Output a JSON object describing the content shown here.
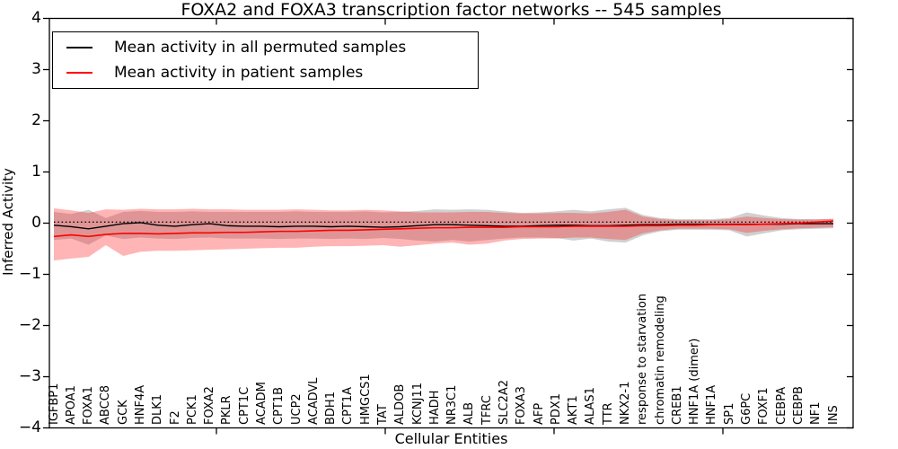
{
  "chart_data": {
    "type": "line",
    "title": "FOXA2 and FOXA3 transcription factor networks -- 545 samples",
    "xlabel": "Cellular Entities",
    "ylabel": "Inferred Activity",
    "ylim": [
      -4,
      4
    ],
    "yticks": [
      4,
      3,
      2,
      1,
      0,
      -1,
      -2,
      -3,
      -4
    ],
    "grid": false,
    "legend_position": "upper left",
    "categories": [
      "IGFBP1",
      "APOA1",
      "FOXA1",
      "ABCC8",
      "GCK",
      "HNF4A",
      "DLK1",
      "F2",
      "PCK1",
      "FOXA2",
      "PKLR",
      "CPT1C",
      "ACADM",
      "CPT1B",
      "UCP2",
      "ACADVL",
      "BDH1",
      "CPT1A",
      "HMGCS1",
      "TAT",
      "ALDOB",
      "KCNJ11",
      "HADH",
      "NR3C1",
      "ALB",
      "TFRC",
      "SLC2A2",
      "FOXA3",
      "AFP",
      "PDX1",
      "AKT1",
      "ALAS1",
      "TTR",
      "NKX2-1",
      "response to starvation",
      "chromatin remodeling",
      "CREB1",
      "HNF1A (dimer)",
      "HNF1A",
      "SP1",
      "G6PC",
      "FOXF1",
      "CEBPA",
      "CEBPB",
      "NF1",
      "INS"
    ],
    "series": [
      {
        "name": "Mean activity in all permuted samples",
        "color": "#000000",
        "style": "solid",
        "values": [
          -0.04,
          -0.07,
          -0.11,
          -0.06,
          -0.01,
          0.01,
          -0.04,
          -0.06,
          -0.03,
          -0.01,
          -0.05,
          -0.06,
          -0.06,
          -0.07,
          -0.06,
          -0.06,
          -0.07,
          -0.06,
          -0.07,
          -0.08,
          -0.07,
          -0.05,
          -0.03,
          -0.03,
          -0.04,
          -0.05,
          -0.06,
          -0.06,
          -0.05,
          -0.04,
          -0.04,
          -0.05,
          -0.05,
          -0.04,
          -0.03,
          -0.03,
          -0.02,
          -0.02,
          -0.02,
          -0.02,
          -0.02,
          -0.02,
          -0.02,
          -0.01,
          -0.01,
          -0.01
        ]
      },
      {
        "name": "Mean activity in patient samples",
        "color": "#ff0000",
        "style": "solid",
        "values": [
          -0.26,
          -0.23,
          -0.26,
          -0.22,
          -0.2,
          -0.2,
          -0.21,
          -0.2,
          -0.19,
          -0.19,
          -0.18,
          -0.18,
          -0.17,
          -0.16,
          -0.16,
          -0.15,
          -0.14,
          -0.14,
          -0.13,
          -0.12,
          -0.11,
          -0.1,
          -0.09,
          -0.09,
          -0.08,
          -0.08,
          -0.08,
          -0.07,
          -0.07,
          -0.07,
          -0.06,
          -0.06,
          -0.06,
          -0.06,
          -0.05,
          -0.05,
          -0.04,
          -0.04,
          -0.03,
          -0.03,
          -0.03,
          -0.02,
          -0.01,
          0.0,
          0.02,
          0.04
        ]
      },
      {
        "name": "permuted median reference",
        "color": "#000000",
        "style": "dotted",
        "constant": 0.02
      }
    ],
    "bands": [
      {
        "name": "permuted samples spread",
        "color": "rgba(120,120,120,0.35)",
        "upper": [
          0.22,
          0.18,
          0.26,
          0.1,
          0.22,
          0.24,
          0.22,
          0.22,
          0.23,
          0.22,
          0.22,
          0.22,
          0.22,
          0.22,
          0.23,
          0.22,
          0.22,
          0.22,
          0.23,
          0.21,
          0.22,
          0.24,
          0.27,
          0.26,
          0.27,
          0.26,
          0.23,
          0.2,
          0.21,
          0.23,
          0.26,
          0.23,
          0.27,
          0.3,
          0.16,
          0.1,
          0.08,
          0.08,
          0.08,
          0.1,
          0.21,
          0.15,
          0.1,
          0.08,
          0.08,
          0.08
        ],
        "lower": [
          -0.33,
          -0.3,
          -0.42,
          -0.24,
          -0.31,
          -0.28,
          -0.3,
          -0.31,
          -0.29,
          -0.28,
          -0.3,
          -0.3,
          -0.3,
          -0.31,
          -0.3,
          -0.3,
          -0.31,
          -0.3,
          -0.31,
          -0.29,
          -0.31,
          -0.34,
          -0.36,
          -0.33,
          -0.36,
          -0.33,
          -0.3,
          -0.28,
          -0.28,
          -0.29,
          -0.34,
          -0.3,
          -0.36,
          -0.38,
          -0.24,
          -0.16,
          -0.13,
          -0.13,
          -0.13,
          -0.14,
          -0.26,
          -0.2,
          -0.14,
          -0.12,
          -0.11,
          -0.1
        ]
      },
      {
        "name": "patient samples spread",
        "color": "rgba(255,25,25,0.32)",
        "upper": [
          0.29,
          0.25,
          0.2,
          0.27,
          0.26,
          0.28,
          0.27,
          0.27,
          0.28,
          0.27,
          0.27,
          0.26,
          0.26,
          0.26,
          0.27,
          0.26,
          0.25,
          0.25,
          0.26,
          0.25,
          0.23,
          0.21,
          0.21,
          0.21,
          0.22,
          0.22,
          0.2,
          0.19,
          0.19,
          0.2,
          0.2,
          0.19,
          0.22,
          0.26,
          0.13,
          0.08,
          0.06,
          0.06,
          0.06,
          0.08,
          0.13,
          0.1,
          0.08,
          0.07,
          0.07,
          0.09
        ],
        "lower": [
          -0.73,
          -0.69,
          -0.66,
          -0.43,
          -0.64,
          -0.56,
          -0.54,
          -0.54,
          -0.53,
          -0.52,
          -0.51,
          -0.5,
          -0.49,
          -0.48,
          -0.48,
          -0.46,
          -0.45,
          -0.45,
          -0.44,
          -0.43,
          -0.46,
          -0.43,
          -0.4,
          -0.38,
          -0.42,
          -0.4,
          -0.34,
          -0.31,
          -0.3,
          -0.3,
          -0.28,
          -0.28,
          -0.31,
          -0.33,
          -0.2,
          -0.14,
          -0.11,
          -0.11,
          -0.11,
          -0.12,
          -0.19,
          -0.15,
          -0.12,
          -0.1,
          -0.09,
          -0.08
        ]
      }
    ]
  }
}
